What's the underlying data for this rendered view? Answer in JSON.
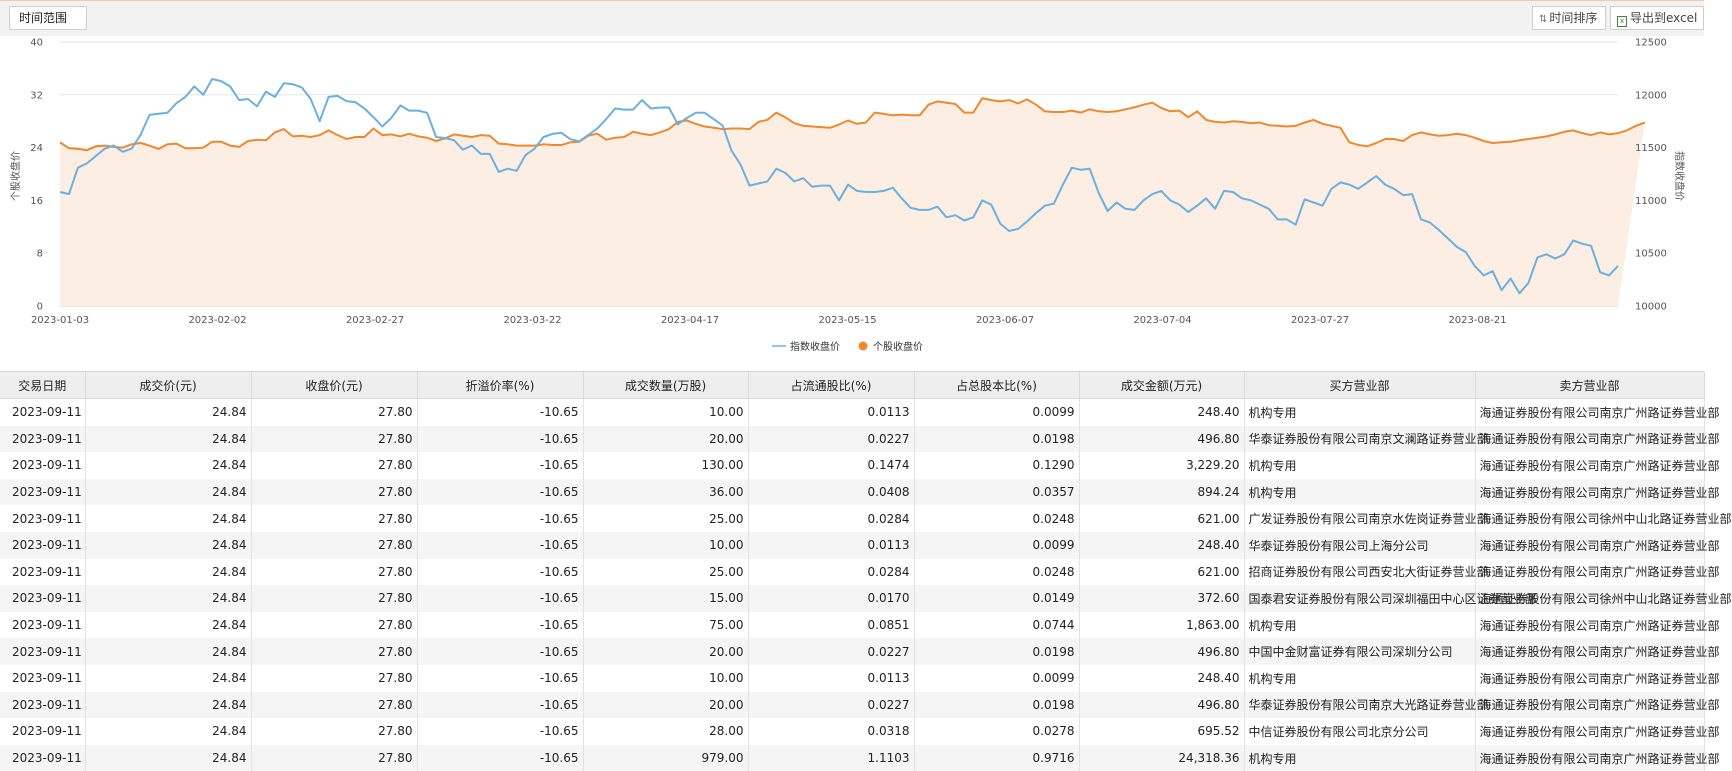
{
  "toolbar": {
    "range_label": "时间范围",
    "sort_label": "时间排序",
    "export_label": "导出到excel",
    "sort_icon": "sort-arrows-icon",
    "export_icon": "excel-icon"
  },
  "chart_data": {
    "type": "line",
    "x_ticks": [
      "2023-01-03",
      "2023-02-02",
      "2023-02-27",
      "2023-03-22",
      "2023-04-17",
      "2023-05-15",
      "2023-06-07",
      "2023-07-04",
      "2023-07-27",
      "2023-08-21"
    ],
    "y_left": {
      "label": "个股收盘价",
      "range": [
        0,
        40
      ],
      "ticks": [
        0,
        8,
        16,
        24,
        32,
        40
      ]
    },
    "y_right": {
      "label": "指数收盘价",
      "range": [
        10000,
        12500
      ],
      "ticks": [
        10000,
        10500,
        11000,
        11500,
        12000,
        12500
      ]
    },
    "legend_placement": "bottom-center",
    "grid": true,
    "series": [
      {
        "name": "指数收盘价",
        "axis": "right",
        "color": "#6ab0e0",
        "values": [
          11080,
          11060,
          11310,
          11350,
          11420,
          11490,
          11520,
          11460,
          11490,
          11620,
          11810,
          11820,
          11830,
          11920,
          11980,
          12080,
          12000,
          12150,
          12130,
          12080,
          11950,
          11960,
          11890,
          12030,
          11980,
          12110,
          12100,
          12070,
          11960,
          11750,
          11980,
          11990,
          11940,
          11930,
          11870,
          11790,
          11700,
          11780,
          11900,
          11850,
          11850,
          11830,
          11600,
          11590,
          11570,
          11480,
          11520,
          11440,
          11440,
          11270,
          11300,
          11280,
          11430,
          11490,
          11600,
          11630,
          11640,
          11580,
          11560,
          11620,
          11680,
          11770,
          11870,
          11860,
          11860,
          11950,
          11870,
          11880,
          11880,
          11720,
          11780,
          11830,
          11830,
          11770,
          11710,
          11470,
          11340,
          11140,
          11160,
          11180,
          11300,
          11260,
          11180,
          11210,
          11130,
          11140,
          11140,
          11000,
          11150,
          11090,
          11080,
          11080,
          11090,
          11120,
          11020,
          10930,
          10910,
          10910,
          10940,
          10840,
          10860,
          10810,
          10840,
          11000,
          10960,
          10780,
          10710,
          10730,
          10800,
          10880,
          10950,
          10970,
          11150,
          11310,
          11290,
          11300,
          11070,
          10900,
          10980,
          10920,
          10910,
          11000,
          11060,
          11090,
          11000,
          10960,
          10890,
          10950,
          11020,
          10920,
          11090,
          11080,
          11020,
          11000,
          10960,
          10920,
          10820,
          10820,
          10770,
          11010,
          10980,
          10950,
          11110,
          11170,
          11150,
          11110,
          11170,
          11230,
          11150,
          11110,
          11050,
          11060,
          10820,
          10790,
          10720,
          10640,
          10560,
          10510,
          10380,
          10290,
          10330,
          10150,
          10260,
          10120,
          10220,
          10460,
          10490,
          10450,
          10490,
          10620,
          10590,
          10570,
          10320,
          10290,
          10380
        ]
      },
      {
        "name": "个股收盘价",
        "axis": "left",
        "color": "#f0882e",
        "values": [
          24.8,
          23.9,
          23.8,
          23.6,
          24.2,
          24.3,
          24.1,
          24.0,
          24.5,
          24.7,
          24.3,
          23.8,
          24.5,
          24.6,
          23.9,
          23.9,
          24.0,
          24.9,
          24.9,
          24.3,
          24.1,
          25.0,
          25.2,
          25.1,
          26.3,
          26.8,
          25.7,
          25.8,
          25.6,
          25.9,
          26.6,
          25.9,
          25.3,
          25.6,
          25.6,
          26.9,
          25.9,
          26.0,
          25.7,
          26.1,
          25.7,
          25.5,
          25.0,
          25.4,
          26.0,
          25.8,
          25.6,
          25.9,
          25.8,
          24.6,
          24.5,
          24.3,
          24.3,
          24.3,
          24.5,
          24.4,
          24.4,
          24.8,
          24.9,
          25.8,
          26.1,
          25.2,
          25.5,
          25.6,
          26.4,
          26.1,
          25.9,
          26.3,
          26.8,
          27.9,
          28.1,
          27.6,
          27.2,
          27.0,
          26.8,
          26.9,
          26.9,
          26.8,
          27.9,
          28.2,
          29.3,
          28.6,
          27.7,
          27.3,
          27.2,
          27.1,
          27.0,
          27.5,
          28.1,
          27.6,
          27.8,
          29.3,
          29.1,
          28.9,
          29.0,
          28.9,
          28.9,
          30.5,
          31.0,
          30.8,
          30.6,
          29.3,
          29.3,
          31.5,
          31.2,
          31.0,
          31.2,
          30.7,
          31.3,
          30.5,
          29.5,
          29.4,
          29.4,
          29.6,
          29.3,
          29.8,
          29.5,
          29.4,
          29.5,
          29.8,
          30.1,
          30.5,
          30.8,
          30.0,
          29.5,
          29.6,
          28.6,
          29.5,
          28.2,
          27.9,
          27.8,
          28.0,
          27.9,
          27.7,
          27.8,
          27.4,
          27.3,
          27.2,
          27.3,
          27.8,
          28.2,
          27.6,
          27.3,
          27.0,
          24.8,
          24.4,
          24.2,
          24.7,
          25.3,
          25.3,
          25.0,
          25.9,
          26.3,
          26.0,
          25.8,
          25.9,
          26.1,
          25.9,
          25.5,
          25.0,
          24.7,
          24.8,
          24.9,
          25.1,
          25.3,
          25.5,
          25.7,
          26.0,
          26.4,
          26.6,
          26.2,
          25.9,
          26.3,
          26.0,
          26.2,
          26.6,
          27.3,
          27.8
        ]
      }
    ]
  },
  "table": {
    "headers": [
      "交易日期",
      "成交价(元)",
      "收盘价(元)",
      "折溢价率(%)",
      "成交数量(万股)",
      "占流通股比(%)",
      "占总股本比(%)",
      "成交金额(万元)",
      "买方营业部",
      "卖方营业部"
    ],
    "rows": [
      [
        "2023-09-11",
        "24.84",
        "27.80",
        "-10.65",
        "10.00",
        "0.0113",
        "0.0099",
        "248.40",
        "机构专用",
        "海通证券股份有限公司南京广州路证券营业部"
      ],
      [
        "2023-09-11",
        "24.84",
        "27.80",
        "-10.65",
        "20.00",
        "0.0227",
        "0.0198",
        "496.80",
        "华泰证券股份有限公司南京文澜路证券营业部",
        "海通证券股份有限公司南京广州路证券营业部"
      ],
      [
        "2023-09-11",
        "24.84",
        "27.80",
        "-10.65",
        "130.00",
        "0.1474",
        "0.1290",
        "3,229.20",
        "机构专用",
        "海通证券股份有限公司南京广州路证券营业部"
      ],
      [
        "2023-09-11",
        "24.84",
        "27.80",
        "-10.65",
        "36.00",
        "0.0408",
        "0.0357",
        "894.24",
        "机构专用",
        "海通证券股份有限公司南京广州路证券营业部"
      ],
      [
        "2023-09-11",
        "24.84",
        "27.80",
        "-10.65",
        "25.00",
        "0.0284",
        "0.0248",
        "621.00",
        "广发证券股份有限公司南京水佐岗证券营业部",
        "海通证券股份有限公司徐州中山北路证券营业部"
      ],
      [
        "2023-09-11",
        "24.84",
        "27.80",
        "-10.65",
        "10.00",
        "0.0113",
        "0.0099",
        "248.40",
        "华泰证券股份有限公司上海分公司",
        "海通证券股份有限公司南京广州路证券营业部"
      ],
      [
        "2023-09-11",
        "24.84",
        "27.80",
        "-10.65",
        "25.00",
        "0.0284",
        "0.0248",
        "621.00",
        "招商证券股份有限公司西安北大街证券营业部",
        "海通证券股份有限公司南京广州路证券营业部"
      ],
      [
        "2023-09-11",
        "24.84",
        "27.80",
        "-10.65",
        "15.00",
        "0.0170",
        "0.0149",
        "372.60",
        "国泰君安证券股份有限公司深圳福田中心区证券营业部",
        "海通证券股份有限公司徐州中山北路证券营业部"
      ],
      [
        "2023-09-11",
        "24.84",
        "27.80",
        "-10.65",
        "75.00",
        "0.0851",
        "0.0744",
        "1,863.00",
        "机构专用",
        "海通证券股份有限公司南京广州路证券营业部"
      ],
      [
        "2023-09-11",
        "24.84",
        "27.80",
        "-10.65",
        "20.00",
        "0.0227",
        "0.0198",
        "496.80",
        "中国中金财富证券有限公司深圳分公司",
        "海通证券股份有限公司南京广州路证券营业部"
      ],
      [
        "2023-09-11",
        "24.84",
        "27.80",
        "-10.65",
        "10.00",
        "0.0113",
        "0.0099",
        "248.40",
        "机构专用",
        "海通证券股份有限公司南京广州路证券营业部"
      ],
      [
        "2023-09-11",
        "24.84",
        "27.80",
        "-10.65",
        "20.00",
        "0.0227",
        "0.0198",
        "496.80",
        "华泰证券股份有限公司南京大光路证券营业部",
        "海通证券股份有限公司南京广州路证券营业部"
      ],
      [
        "2023-09-11",
        "24.84",
        "27.80",
        "-10.65",
        "28.00",
        "0.0318",
        "0.0278",
        "695.52",
        "中信证券股份有限公司北京分公司",
        "海通证券股份有限公司南京广州路证券营业部"
      ],
      [
        "2023-09-11",
        "24.84",
        "27.80",
        "-10.65",
        "979.00",
        "1.1103",
        "0.9716",
        "24,318.36",
        "机构专用",
        "海通证券股份有限公司南京广州路证券营业部"
      ]
    ]
  }
}
